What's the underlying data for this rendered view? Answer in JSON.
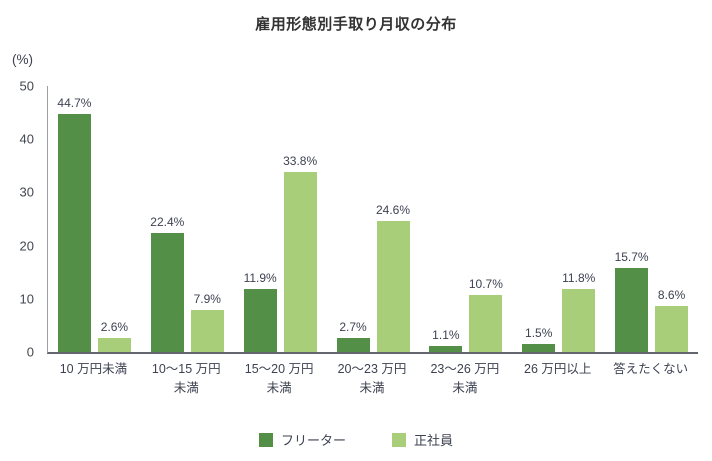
{
  "chart": {
    "title": "雇用形態別手取り月収の分布",
    "unit_label": "(%)"
  },
  "chart_data": {
    "type": "bar",
    "title": "雇用形態別手取り月収の分布",
    "unit": "(%)",
    "categories": [
      "10 万円未満",
      "10〜15 万円\n未満",
      "15〜20 万円\n未満",
      "20〜23 万円\n未満",
      "23〜26 万円\n未満",
      "26 万円以上",
      "答えたくない"
    ],
    "series": [
      {
        "name": "フリーター",
        "color": "#548F48",
        "values": [
          44.7,
          22.4,
          11.9,
          2.7,
          1.1,
          1.5,
          15.7
        ]
      },
      {
        "name": "正社員",
        "color": "#A9CE79",
        "values": [
          2.6,
          7.9,
          33.8,
          24.6,
          10.7,
          11.8,
          8.6
        ]
      }
    ],
    "value_label_format": "{v}%",
    "ylim": [
      0,
      50
    ],
    "yticks": [
      0,
      10,
      20,
      30,
      40,
      50
    ],
    "grid": false,
    "legend_position": "bottom",
    "axis_color": "#9aa0a6",
    "baseline_color": "#63676d",
    "label_color": "#3d4251"
  }
}
